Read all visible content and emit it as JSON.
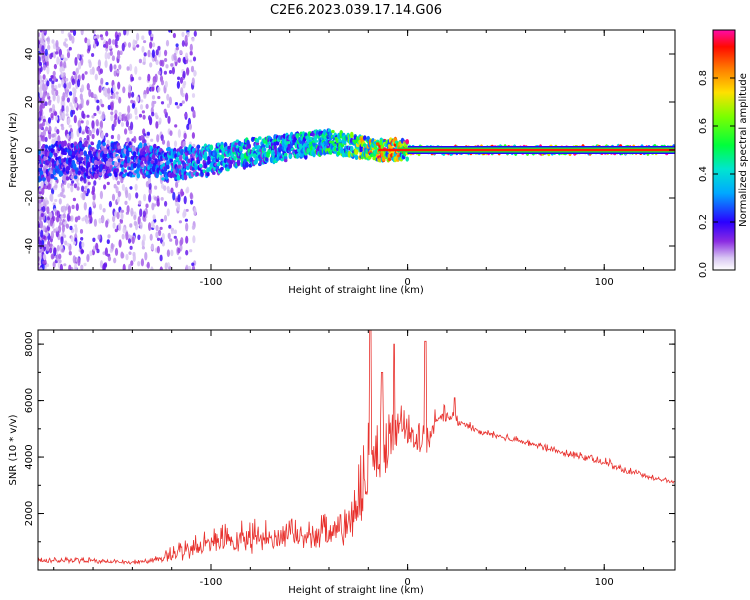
{
  "title": "C2E6.2023.039.17.14.G06",
  "chart_data": [
    {
      "type": "heatmap",
      "xlabel": "Height of straight line (km)",
      "ylabel": "Frequency (Hz)",
      "xlim": [
        -188,
        136
      ],
      "ylim": [
        -50,
        50
      ],
      "xticks": [
        -100,
        0,
        100
      ],
      "yticks": [
        -40,
        -20,
        0,
        20,
        40
      ],
      "colorbar": {
        "label": "Normalized spectral amplitude",
        "range": [
          0,
          1
        ],
        "ticks": [
          "0.0",
          "0.2",
          "0.4",
          "0.6",
          "0.8"
        ]
      },
      "trace": {
        "x": [
          -188,
          -160,
          -140,
          -120,
          -100,
          -80,
          -60,
          -45,
          -35,
          -25,
          -15,
          -5,
          0,
          20,
          60,
          100,
          136
        ],
        "frequency": [
          -5,
          -4,
          -4,
          -6,
          -4,
          -1,
          1,
          3,
          3,
          1,
          0,
          0,
          0,
          0,
          0,
          0,
          0
        ],
        "amplitude": [
          0.25,
          0.25,
          0.3,
          0.35,
          0.4,
          0.45,
          0.45,
          0.5,
          0.55,
          0.7,
          0.85,
          0.9,
          0.92,
          0.92,
          0.92,
          0.92,
          0.92
        ]
      }
    },
    {
      "type": "line",
      "xlabel": "Height of straight line (km)",
      "ylabel": "SNR (10 * v/v)",
      "xlim": [
        -188,
        136
      ],
      "ylim": [
        0,
        8500
      ],
      "xticks": [
        -100,
        0,
        100
      ],
      "yticks": [
        2000,
        4000,
        6000,
        8000
      ],
      "color": "#e8322e",
      "envelope": {
        "x": [
          -188,
          -160,
          -140,
          -130,
          -120,
          -110,
          -100,
          -90,
          -80,
          -70,
          -60,
          -50,
          -40,
          -30,
          -25,
          -20,
          -15,
          -10,
          -5,
          0,
          5,
          10,
          15,
          20,
          25,
          40,
          60,
          80,
          100,
          110,
          120,
          136
        ],
        "base": [
          300,
          300,
          250,
          300,
          450,
          650,
          800,
          900,
          950,
          1000,
          1050,
          1100,
          1150,
          1200,
          2100,
          3200,
          3700,
          4200,
          4700,
          4800,
          4400,
          4600,
          5000,
          5500,
          5200,
          4800,
          4500,
          4100,
          3800,
          3500,
          3300,
          3100
        ],
        "spread": [
          200,
          200,
          150,
          200,
          600,
          900,
          1000,
          1200,
          1300,
          1100,
          1200,
          1200,
          1300,
          1500,
          2500,
          3000,
          2500,
          2300,
          1800,
          1200,
          1300,
          1500,
          1000,
          600,
          400,
          250,
          250,
          250,
          300,
          300,
          200,
          150
        ],
        "peaks": [
          {
            "x": -19,
            "y": 8500
          },
          {
            "x": -13,
            "y": 7000
          },
          {
            "x": -7,
            "y": 8000
          },
          {
            "x": 9,
            "y": 8100
          },
          {
            "x": 24,
            "y": 6100
          }
        ]
      }
    }
  ]
}
